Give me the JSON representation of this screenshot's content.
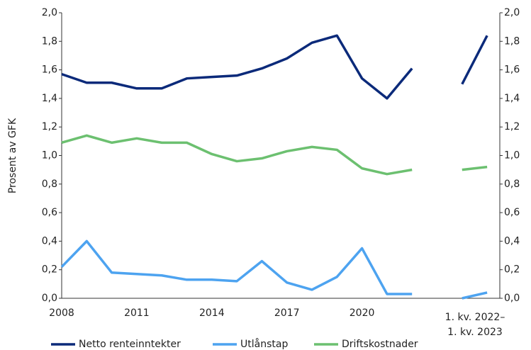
{
  "chart_data": {
    "type": "line",
    "y_label": "Prosent av GFK",
    "categories": [
      "2008",
      null,
      null,
      "2011",
      null,
      null,
      "2014",
      null,
      null,
      "2017",
      null,
      null,
      "2020",
      null,
      null,
      null,
      null,
      null
    ],
    "period_label": [
      "1. kv. 2022–",
      "1. kv. 2023"
    ],
    "series": [
      {
        "name": "Netto renteinntekter",
        "color": "#0b2a7a",
        "values": [
          1.57,
          1.51,
          1.51,
          1.47,
          1.47,
          1.54,
          1.55,
          1.56,
          1.61,
          1.68,
          1.79,
          1.84,
          1.54,
          1.4,
          1.61,
          null,
          1.5,
          1.84
        ]
      },
      {
        "name": "Utlånstap",
        "color": "#4da3f0",
        "values": [
          0.22,
          0.4,
          0.18,
          0.17,
          0.16,
          0.13,
          0.13,
          0.12,
          0.26,
          0.11,
          0.06,
          0.15,
          0.35,
          0.03,
          0.03,
          null,
          0.0,
          0.04
        ]
      },
      {
        "name": "Driftskostnader",
        "color": "#6cc070",
        "values": [
          1.09,
          1.14,
          1.09,
          1.12,
          1.09,
          1.09,
          1.01,
          0.96,
          0.98,
          1.03,
          1.06,
          1.04,
          0.91,
          0.87,
          0.9,
          null,
          0.9,
          0.92
        ]
      }
    ],
    "ylim": [
      0,
      2
    ],
    "yticks": [
      {
        "value": 0,
        "label": "0,0"
      },
      {
        "value": 0.2,
        "label": "0,2"
      },
      {
        "value": 0.4,
        "label": "0,4"
      },
      {
        "value": 0.6,
        "label": "0,6"
      },
      {
        "value": 0.8,
        "label": "0,8"
      },
      {
        "value": 1,
        "label": "1,0"
      },
      {
        "value": 1.2,
        "label": "1,2"
      },
      {
        "value": 1.4,
        "label": "1,4"
      },
      {
        "value": 1.6,
        "label": "1,6"
      },
      {
        "value": 1.8,
        "label": "1,8"
      },
      {
        "value": 2,
        "label": "2,0"
      }
    ],
    "y2lim": [
      0,
      2
    ],
    "y2ticks": [
      {
        "value": 0,
        "label": "0,0"
      },
      {
        "value": 0.2,
        "label": "0,2"
      },
      {
        "value": 0.4,
        "label": "0,4"
      },
      {
        "value": 0.6,
        "label": "0,6"
      },
      {
        "value": 0.8,
        "label": "0,8"
      },
      {
        "value": 1,
        "label": "1,0"
      },
      {
        "value": 1.2,
        "label": "1,2"
      },
      {
        "value": 1.4,
        "label": "1,4"
      },
      {
        "value": 1.6,
        "label": "1,6"
      },
      {
        "value": 1.8,
        "label": "1,8"
      },
      {
        "value": 2,
        "label": "2,0"
      }
    ],
    "legend": "bottom"
  }
}
